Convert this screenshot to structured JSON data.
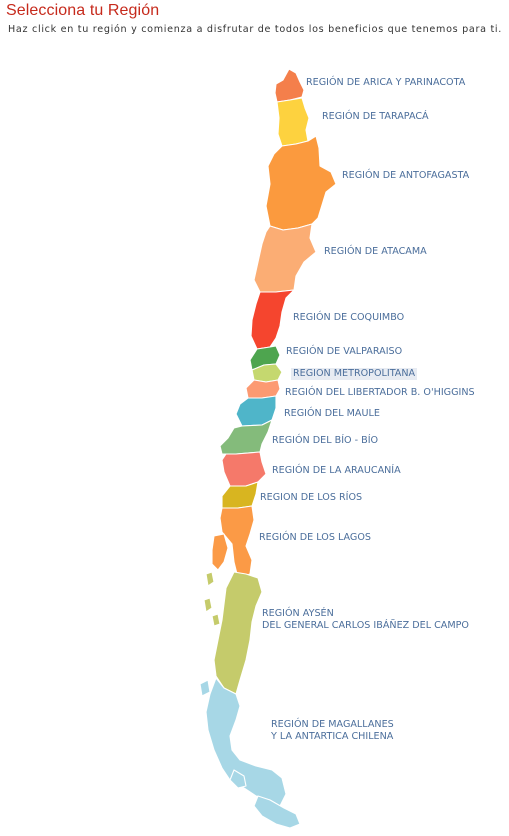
{
  "header": {
    "title": "Selecciona tu Región",
    "subtitle": "Haz click en tu región y comienza a disfrutar de todos los beneficios que tenemos para ti."
  },
  "regions": [
    {
      "id": "arica",
      "label": "REGIÓN DE ARICA Y PARINACOTA",
      "color": "#f47f4b"
    },
    {
      "id": "tarapaca",
      "label": "REGIÓN DE TARAPACÁ",
      "color": "#fdd23f"
    },
    {
      "id": "antofagasta",
      "label": "REGIÓN DE ANTOFAGASTA",
      "color": "#fb9a3e"
    },
    {
      "id": "atacama",
      "label": "REGIÓN DE ATACAMA",
      "color": "#fbad74"
    },
    {
      "id": "coquimbo",
      "label": "REGIÓN DE COQUIMBO",
      "color": "#f5452e"
    },
    {
      "id": "valparaiso",
      "label": "REGIÓN DE VALPARAISO",
      "color": "#4ea54f"
    },
    {
      "id": "metropolitana",
      "label": "REGION METROPOLITANA",
      "color": "#c5d86f"
    },
    {
      "id": "ohiggins",
      "label": "REGIÓN DEL LIBERTADOR  B. O'HIGGINS",
      "color": "#fc9a72"
    },
    {
      "id": "maule",
      "label": "REGIÓN DEL MAULE",
      "color": "#4fb5c9"
    },
    {
      "id": "biobio",
      "label": "REGIÓN DEL BÍO - BÍO",
      "color": "#84bb7b"
    },
    {
      "id": "araucania",
      "label": "REGIÓN DE LA ARAUCANÍA",
      "color": "#f5796a"
    },
    {
      "id": "rios",
      "label": "REGION DE LOS RÍOS",
      "color": "#d8b520"
    },
    {
      "id": "lagos",
      "label": "REGIÓN DE LOS LAGOS",
      "color": "#fb9a46"
    },
    {
      "id": "aysen",
      "label": "REGIÓN AYSÉN",
      "label2": "DEL GENERAL CARLOS IBÁÑEZ DEL CAMPO",
      "color": "#c5cb6b"
    },
    {
      "id": "magallanes",
      "label": "REGIÓN DE MAGALLANES",
      "label2": "Y LA ANTARTICA CHILENA",
      "color": "#a7d7e6"
    }
  ]
}
